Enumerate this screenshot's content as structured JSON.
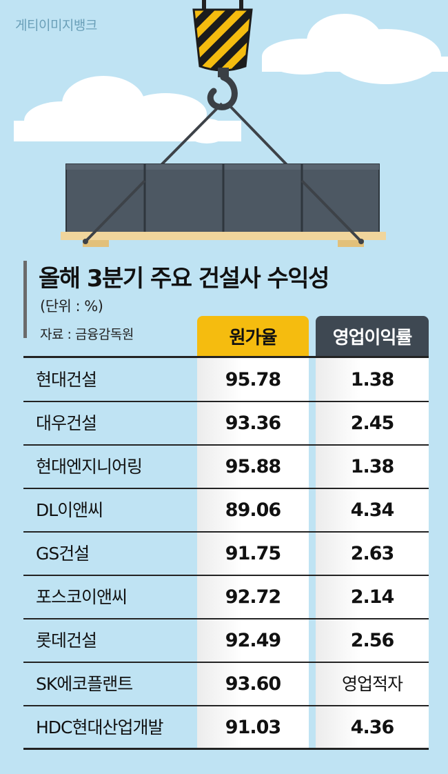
{
  "credit": "게티이미지뱅크",
  "title": "올해 3분기 주요 건설사 수익성",
  "unit": "(단위 : %)",
  "source": "자료 : 금융감독원",
  "colors": {
    "sky": "#bfe3f3",
    "hook_stripe_yellow": "#f5bc0f",
    "container": "#4d5863",
    "header_cost": "#f5bc0f",
    "header_margin": "#3e4852"
  },
  "chart_data": {
    "type": "table",
    "title": "올해 3분기 주요 건설사 수익성",
    "columns": [
      "원가율",
      "영업이익률"
    ],
    "rows": [
      {
        "company": "현대건설",
        "cost_ratio": "95.78",
        "operating_margin": "1.38"
      },
      {
        "company": "대우건설",
        "cost_ratio": "93.36",
        "operating_margin": "2.45"
      },
      {
        "company": "현대엔지니어링",
        "cost_ratio": "95.88",
        "operating_margin": "1.38"
      },
      {
        "company": "DL이앤씨",
        "cost_ratio": "89.06",
        "operating_margin": "4.34"
      },
      {
        "company": "GS건설",
        "cost_ratio": "91.75",
        "operating_margin": "2.63"
      },
      {
        "company": "포스코이앤씨",
        "cost_ratio": "92.72",
        "operating_margin": "2.14"
      },
      {
        "company": "롯데건설",
        "cost_ratio": "92.49",
        "operating_margin": "2.56"
      },
      {
        "company": "SK에코플랜트",
        "cost_ratio": "93.60",
        "operating_margin": "영업적자"
      },
      {
        "company": "HDC현대산업개발",
        "cost_ratio": "91.03",
        "operating_margin": "4.36"
      }
    ]
  }
}
